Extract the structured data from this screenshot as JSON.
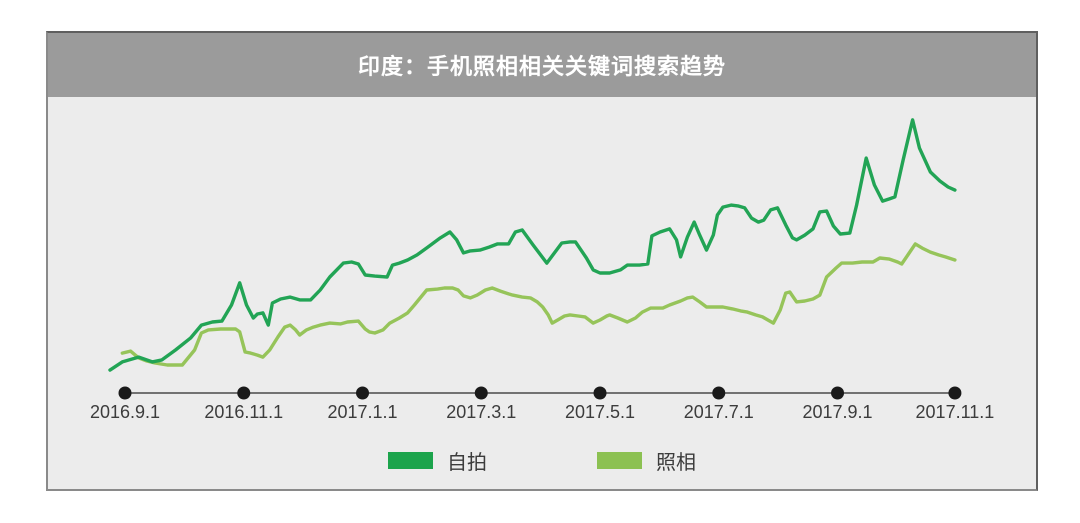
{
  "header": {
    "title": "印度：手机照相相关关键词搜索趋势"
  },
  "colors": {
    "header_bg": "#9b9b9b",
    "plot_bg": "#ececec",
    "axis_line": "#4a4a4a",
    "axis_dot": "#1a1a1a",
    "tick_text": "#3c3c3c",
    "series_dark_green": "#22a455",
    "series_light_green": "#96c45a",
    "legend_dark_swatch": "#1ca44c",
    "legend_light_swatch": "#8cc152"
  },
  "chart_data": {
    "type": "line",
    "title": "印度：手机照相相关关键词搜索趋势",
    "xlabel": "",
    "ylabel": "",
    "x_unit": "weeks since 2016-09-01",
    "y_unit": "relative search interest (0-100, no visible y axis)",
    "grid": false,
    "legend_position": "bottom",
    "x_axis": {
      "tick_labels": [
        "2016.9.1",
        "2016.11.1",
        "2017.1.1",
        "2017.3.1",
        "2017.5.1",
        "2017.7.1",
        "2017.9.1",
        "2017.11.1"
      ],
      "tick_weeks": [
        0,
        8.7,
        17.4,
        26.1,
        34.8,
        43.5,
        52.2,
        60.8
      ],
      "range_weeks": [
        -1.1,
        60.8
      ]
    },
    "y_axis": {
      "visible": false,
      "range": [
        0,
        100
      ]
    },
    "series": [
      {
        "name": "自拍",
        "color": "#22a455",
        "swatch_color": "#1ca44c",
        "points": [
          [
            -1.1,
            8.1
          ],
          [
            -0.2,
            11
          ],
          [
            1,
            12.7
          ],
          [
            2,
            11
          ],
          [
            2.7,
            11.7
          ],
          [
            3.7,
            15.2
          ],
          [
            4.8,
            19.4
          ],
          [
            5.6,
            24
          ],
          [
            6.4,
            25.1
          ],
          [
            7.1,
            25.4
          ],
          [
            7.8,
            31.1
          ],
          [
            8.4,
            38.9
          ],
          [
            8.9,
            31.1
          ],
          [
            9.4,
            26.5
          ],
          [
            9.7,
            27.9
          ],
          [
            10.1,
            28.3
          ],
          [
            10.5,
            24
          ],
          [
            10.8,
            31.8
          ],
          [
            11.4,
            33.2
          ],
          [
            12.1,
            33.9
          ],
          [
            12.8,
            32.9
          ],
          [
            13.6,
            32.9
          ],
          [
            14.3,
            36.4
          ],
          [
            15,
            41
          ],
          [
            16,
            45.9
          ],
          [
            16.6,
            46.3
          ],
          [
            17.1,
            45.6
          ],
          [
            17.6,
            41.7
          ],
          [
            18.3,
            41.3
          ],
          [
            19.2,
            41
          ],
          [
            19.6,
            45.2
          ],
          [
            20.1,
            45.9
          ],
          [
            20.7,
            47
          ],
          [
            21.4,
            48.8
          ],
          [
            22.2,
            51.6
          ],
          [
            23.1,
            54.8
          ],
          [
            23.8,
            56.9
          ],
          [
            24.3,
            54.1
          ],
          [
            24.8,
            49.5
          ],
          [
            25.3,
            50.2
          ],
          [
            26,
            50.5
          ],
          [
            26.7,
            51.6
          ],
          [
            27.3,
            52.7
          ],
          [
            28.1,
            52.7
          ],
          [
            28.6,
            56.9
          ],
          [
            29.1,
            57.6
          ],
          [
            29.9,
            52.3
          ],
          [
            30.9,
            45.9
          ],
          [
            32,
            53
          ],
          [
            32.6,
            53.4
          ],
          [
            33,
            53.4
          ],
          [
            33.8,
            47.7
          ],
          [
            34.3,
            43.5
          ],
          [
            34.8,
            42.4
          ],
          [
            35.5,
            42.4
          ],
          [
            36.3,
            43.5
          ],
          [
            36.8,
            45.2
          ],
          [
            37.7,
            45.2
          ],
          [
            38.3,
            45.6
          ],
          [
            38.6,
            55.5
          ],
          [
            39.2,
            56.9
          ],
          [
            39.9,
            58
          ],
          [
            40.4,
            54.1
          ],
          [
            40.7,
            48.1
          ],
          [
            41.2,
            55.1
          ],
          [
            41.7,
            60.4
          ],
          [
            42.1,
            55.8
          ],
          [
            42.6,
            50.5
          ],
          [
            43.1,
            55.8
          ],
          [
            43.4,
            62.9
          ],
          [
            43.8,
            65.7
          ],
          [
            44.4,
            66.4
          ],
          [
            44.9,
            66.1
          ],
          [
            45.4,
            65.4
          ],
          [
            45.9,
            61.8
          ],
          [
            46.4,
            60.4
          ],
          [
            46.8,
            61.1
          ],
          [
            47.3,
            64.7
          ],
          [
            47.8,
            65.4
          ],
          [
            48.4,
            59.4
          ],
          [
            48.9,
            54.8
          ],
          [
            49.2,
            54.1
          ],
          [
            49.8,
            55.8
          ],
          [
            50.4,
            58
          ],
          [
            50.9,
            64
          ],
          [
            51.4,
            64.3
          ],
          [
            51.9,
            59
          ],
          [
            52.4,
            56.2
          ],
          [
            53.1,
            56.5
          ],
          [
            53.6,
            66.4
          ],
          [
            54.3,
            83
          ],
          [
            54.9,
            73.5
          ],
          [
            55.5,
            67.8
          ],
          [
            56,
            68.6
          ],
          [
            56.4,
            69.3
          ],
          [
            57,
            82.3
          ],
          [
            57.7,
            96.5
          ],
          [
            58.2,
            86.6
          ],
          [
            59,
            78.1
          ],
          [
            59.7,
            74.9
          ],
          [
            60.3,
            72.8
          ],
          [
            60.8,
            71.7
          ]
        ]
      },
      {
        "name": "照相",
        "color": "#96c45a",
        "swatch_color": "#8cc152",
        "points": [
          [
            -0.2,
            14.1
          ],
          [
            0.4,
            14.8
          ],
          [
            1,
            12.4
          ],
          [
            1.6,
            11.3
          ],
          [
            2.2,
            10.6
          ],
          [
            3.1,
            9.9
          ],
          [
            3.7,
            9.9
          ],
          [
            4.2,
            9.9
          ],
          [
            5.1,
            15.2
          ],
          [
            5.6,
            21.2
          ],
          [
            6.1,
            22.3
          ],
          [
            7,
            22.6
          ],
          [
            8.1,
            22.6
          ],
          [
            8.4,
            21.6
          ],
          [
            8.8,
            14.5
          ],
          [
            9.2,
            14.1
          ],
          [
            9.7,
            13.4
          ],
          [
            10.1,
            12.7
          ],
          [
            10.6,
            15.2
          ],
          [
            11.2,
            19.8
          ],
          [
            11.7,
            23.3
          ],
          [
            12.1,
            24
          ],
          [
            12.5,
            22.3
          ],
          [
            12.8,
            20.5
          ],
          [
            13.3,
            22.3
          ],
          [
            13.8,
            23.3
          ],
          [
            14.3,
            24
          ],
          [
            15,
            24.7
          ],
          [
            15.8,
            24.4
          ],
          [
            16.3,
            25.1
          ],
          [
            17.1,
            25.4
          ],
          [
            17.6,
            22.6
          ],
          [
            17.9,
            21.6
          ],
          [
            18.3,
            21.2
          ],
          [
            18.9,
            22.3
          ],
          [
            19.4,
            24.7
          ],
          [
            20.1,
            26.5
          ],
          [
            20.7,
            28.3
          ],
          [
            21.2,
            31.1
          ],
          [
            22.1,
            36.4
          ],
          [
            22.9,
            36.7
          ],
          [
            23.4,
            37.1
          ],
          [
            24,
            37.1
          ],
          [
            24.4,
            36.4
          ],
          [
            24.8,
            34.3
          ],
          [
            25.3,
            33.6
          ],
          [
            25.8,
            34.6
          ],
          [
            26.4,
            36.4
          ],
          [
            26.9,
            37.1
          ],
          [
            27.5,
            36
          ],
          [
            28.1,
            35
          ],
          [
            28.4,
            34.6
          ],
          [
            29.1,
            33.9
          ],
          [
            29.7,
            33.6
          ],
          [
            30.2,
            32.2
          ],
          [
            30.6,
            30.4
          ],
          [
            31,
            27.6
          ],
          [
            31.3,
            24.7
          ],
          [
            31.7,
            25.8
          ],
          [
            32.2,
            27.2
          ],
          [
            32.6,
            27.6
          ],
          [
            33.2,
            27.2
          ],
          [
            33.7,
            26.9
          ],
          [
            34.3,
            24.7
          ],
          [
            34.8,
            25.8
          ],
          [
            35.3,
            27.2
          ],
          [
            35.5,
            27.6
          ],
          [
            36.1,
            26.5
          ],
          [
            36.8,
            25.1
          ],
          [
            37.4,
            26.5
          ],
          [
            37.9,
            28.6
          ],
          [
            38.5,
            30
          ],
          [
            39,
            30
          ],
          [
            39.4,
            30
          ],
          [
            39.9,
            31.1
          ],
          [
            40.7,
            32.5
          ],
          [
            41.2,
            33.6
          ],
          [
            41.6,
            33.9
          ],
          [
            42.1,
            32.2
          ],
          [
            42.6,
            30.4
          ],
          [
            43.2,
            30.4
          ],
          [
            43.8,
            30.4
          ],
          [
            44.5,
            29.7
          ],
          [
            45.1,
            29
          ],
          [
            45.6,
            28.6
          ],
          [
            46.2,
            27.6
          ],
          [
            46.7,
            26.9
          ],
          [
            47.1,
            25.8
          ],
          [
            47.5,
            24.7
          ],
          [
            48,
            29.3
          ],
          [
            48.4,
            35.3
          ],
          [
            48.7,
            35.7
          ],
          [
            49.2,
            32.2
          ],
          [
            49.8,
            32.5
          ],
          [
            50.4,
            33.2
          ],
          [
            50.9,
            34.6
          ],
          [
            51.4,
            41
          ],
          [
            52.1,
            44.2
          ],
          [
            52.5,
            45.9
          ],
          [
            53.3,
            45.9
          ],
          [
            54,
            46.3
          ],
          [
            54.8,
            46.3
          ],
          [
            55.3,
            47.7
          ],
          [
            56,
            47.3
          ],
          [
            56.6,
            46.3
          ],
          [
            56.9,
            45.6
          ],
          [
            57.4,
            49.1
          ],
          [
            57.9,
            52.7
          ],
          [
            58.4,
            51.2
          ],
          [
            59,
            49.8
          ],
          [
            59.6,
            48.8
          ],
          [
            60.1,
            48.1
          ],
          [
            60.8,
            47
          ]
        ]
      }
    ]
  },
  "legend": {
    "items": [
      {
        "label": "自拍"
      },
      {
        "label": "照相"
      }
    ]
  }
}
